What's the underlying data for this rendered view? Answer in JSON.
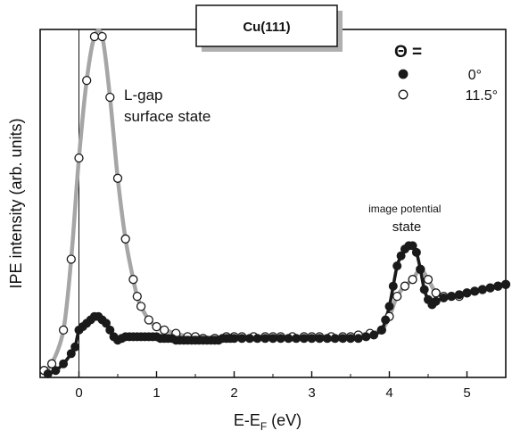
{
  "chart_data": {
    "type": "scatter",
    "title": "Cu(111)",
    "xlabel": "E-E",
    "xlabel_sub": "F",
    "xlabel_unit": " (eV)",
    "ylabel": "IPE intensity (arb. units)",
    "xlim": [
      -0.5,
      5.5
    ],
    "ylim": [
      0,
      100
    ],
    "yticks_shown": false,
    "xticks": [
      0,
      1,
      2,
      3,
      4,
      5
    ],
    "vertical_reference_line_x": 0,
    "legend": {
      "header": "Θ =",
      "position": "top-right",
      "entries": [
        {
          "marker": "filled-circle",
          "label": "0°"
        },
        {
          "marker": "open-circle",
          "label": "11.5°"
        }
      ]
    },
    "annotations": [
      {
        "lines": [
          "L-gap",
          "surface state"
        ]
      },
      {
        "lines": [
          "image potential",
          "state"
        ]
      }
    ],
    "series": [
      {
        "name": "0°",
        "marker": "filled-circle",
        "line_color": "#1a1a1a",
        "points": [
          [
            -0.4,
            0
          ],
          [
            -0.3,
            1
          ],
          [
            -0.2,
            3
          ],
          [
            -0.1,
            6
          ],
          [
            -0.05,
            8
          ],
          [
            0.0,
            13
          ],
          [
            0.05,
            14
          ],
          [
            0.1,
            15
          ],
          [
            0.15,
            16
          ],
          [
            0.2,
            17
          ],
          [
            0.25,
            17
          ],
          [
            0.3,
            16
          ],
          [
            0.35,
            15
          ],
          [
            0.4,
            13
          ],
          [
            0.45,
            11
          ],
          [
            0.5,
            10
          ],
          [
            0.55,
            10.5
          ],
          [
            0.6,
            11
          ],
          [
            0.65,
            11
          ],
          [
            0.7,
            11
          ],
          [
            0.75,
            11
          ],
          [
            0.8,
            11
          ],
          [
            0.85,
            11
          ],
          [
            0.9,
            11
          ],
          [
            0.95,
            11
          ],
          [
            1.0,
            11
          ],
          [
            1.05,
            10.5
          ],
          [
            1.1,
            10.5
          ],
          [
            1.15,
            10.5
          ],
          [
            1.2,
            10.5
          ],
          [
            1.25,
            10
          ],
          [
            1.3,
            10
          ],
          [
            1.35,
            10
          ],
          [
            1.4,
            10
          ],
          [
            1.45,
            10
          ],
          [
            1.5,
            10
          ],
          [
            1.55,
            10
          ],
          [
            1.6,
            10
          ],
          [
            1.65,
            10
          ],
          [
            1.7,
            10
          ],
          [
            1.75,
            10
          ],
          [
            1.8,
            10
          ],
          [
            1.85,
            10.5
          ],
          [
            1.9,
            10.5
          ],
          [
            1.95,
            10.5
          ],
          [
            2.0,
            10.5
          ],
          [
            2.1,
            10.5
          ],
          [
            2.2,
            10.5
          ],
          [
            2.3,
            10.5
          ],
          [
            2.4,
            10.5
          ],
          [
            2.5,
            10.5
          ],
          [
            2.6,
            10.5
          ],
          [
            2.7,
            10.5
          ],
          [
            2.8,
            10.5
          ],
          [
            2.9,
            10.5
          ],
          [
            3.0,
            10.5
          ],
          [
            3.1,
            10.5
          ],
          [
            3.2,
            10.5
          ],
          [
            3.3,
            10.5
          ],
          [
            3.4,
            10.5
          ],
          [
            3.5,
            10.5
          ],
          [
            3.6,
            10.5
          ],
          [
            3.7,
            11
          ],
          [
            3.8,
            11.5
          ],
          [
            3.9,
            13
          ],
          [
            3.95,
            16
          ],
          [
            4.0,
            20
          ],
          [
            4.05,
            26
          ],
          [
            4.1,
            32
          ],
          [
            4.15,
            35
          ],
          [
            4.2,
            37
          ],
          [
            4.25,
            38
          ],
          [
            4.3,
            38
          ],
          [
            4.35,
            36
          ],
          [
            4.4,
            31
          ],
          [
            4.45,
            25
          ],
          [
            4.5,
            22
          ],
          [
            4.55,
            20.5
          ],
          [
            4.6,
            21.5
          ],
          [
            4.7,
            22.5
          ],
          [
            4.8,
            23
          ],
          [
            4.9,
            23.5
          ],
          [
            5.0,
            24
          ],
          [
            5.1,
            24.5
          ],
          [
            5.2,
            25
          ],
          [
            5.3,
            25.5
          ],
          [
            5.4,
            26
          ],
          [
            5.5,
            26.5
          ]
        ]
      },
      {
        "name": "11.5°",
        "marker": "open-circle",
        "line_color": "#a6a6a6",
        "points": [
          [
            -0.45,
            1
          ],
          [
            -0.35,
            3
          ],
          [
            -0.2,
            13
          ],
          [
            -0.1,
            34
          ],
          [
            0.0,
            64
          ],
          [
            0.1,
            87
          ],
          [
            0.2,
            100
          ],
          [
            0.3,
            100
          ],
          [
            0.4,
            82
          ],
          [
            0.5,
            58
          ],
          [
            0.6,
            40
          ],
          [
            0.7,
            28
          ],
          [
            0.75,
            23
          ],
          [
            0.8,
            20
          ],
          [
            0.9,
            16
          ],
          [
            1.0,
            14
          ],
          [
            1.1,
            13
          ],
          [
            1.25,
            12
          ],
          [
            1.4,
            11
          ],
          [
            1.5,
            11
          ],
          [
            1.6,
            10.5
          ],
          [
            1.75,
            10.5
          ],
          [
            1.9,
            11
          ],
          [
            2.0,
            11
          ],
          [
            2.1,
            11
          ],
          [
            2.25,
            11
          ],
          [
            2.4,
            11
          ],
          [
            2.5,
            11
          ],
          [
            2.6,
            11
          ],
          [
            2.75,
            11
          ],
          [
            2.9,
            11
          ],
          [
            3.0,
            11
          ],
          [
            3.1,
            11
          ],
          [
            3.25,
            11
          ],
          [
            3.4,
            11
          ],
          [
            3.5,
            11
          ],
          [
            3.6,
            11.5
          ],
          [
            3.75,
            12
          ],
          [
            3.9,
            13
          ],
          [
            4.0,
            17
          ],
          [
            4.1,
            23
          ],
          [
            4.2,
            26
          ],
          [
            4.3,
            28
          ],
          [
            4.4,
            31
          ],
          [
            4.5,
            28
          ],
          [
            4.6,
            24
          ],
          [
            4.7,
            23
          ],
          [
            4.8,
            23
          ],
          [
            4.9,
            23
          ],
          [
            5.0,
            24
          ],
          [
            5.1,
            24.5
          ],
          [
            5.2,
            25
          ],
          [
            5.3,
            25.5
          ],
          [
            5.4,
            26
          ],
          [
            5.5,
            26.5
          ]
        ]
      }
    ]
  }
}
